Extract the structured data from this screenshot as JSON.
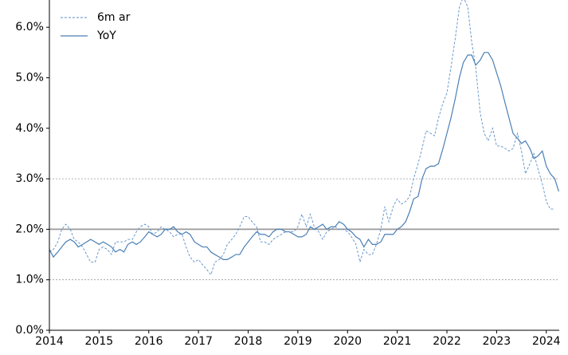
{
  "chart_data": {
    "type": "line",
    "x": [
      2014,
      2014.08,
      2014.17,
      2014.25,
      2014.33,
      2014.42,
      2014.5,
      2014.58,
      2014.67,
      2014.75,
      2014.83,
      2014.92,
      2015,
      2015.08,
      2015.17,
      2015.25,
      2015.33,
      2015.42,
      2015.5,
      2015.58,
      2015.67,
      2015.75,
      2015.83,
      2015.92,
      2016,
      2016.08,
      2016.17,
      2016.25,
      2016.33,
      2016.42,
      2016.5,
      2016.58,
      2016.67,
      2016.75,
      2016.83,
      2016.92,
      2017,
      2017.08,
      2017.17,
      2017.25,
      2017.33,
      2017.42,
      2017.5,
      2017.58,
      2017.67,
      2017.75,
      2017.83,
      2017.92,
      2018,
      2018.08,
      2018.17,
      2018.25,
      2018.33,
      2018.42,
      2018.5,
      2018.58,
      2018.67,
      2018.75,
      2018.83,
      2018.92,
      2019,
      2019.08,
      2019.17,
      2019.25,
      2019.33,
      2019.42,
      2019.5,
      2019.58,
      2019.67,
      2019.75,
      2019.83,
      2019.92,
      2020,
      2020.08,
      2020.17,
      2020.25,
      2020.33,
      2020.42,
      2020.5,
      2020.58,
      2020.67,
      2020.75,
      2020.83,
      2020.92,
      2021,
      2021.08,
      2021.17,
      2021.25,
      2021.33,
      2021.42,
      2021.5,
      2021.58,
      2021.67,
      2021.75,
      2021.83,
      2021.92,
      2022,
      2022.08,
      2022.17,
      2022.25,
      2022.33,
      2022.42,
      2022.5,
      2022.58,
      2022.67,
      2022.75,
      2022.83,
      2022.92,
      2023,
      2023.08,
      2023.17,
      2023.25,
      2023.33,
      2023.42,
      2023.5,
      2023.58,
      2023.67,
      2023.75,
      2023.83,
      2023.92,
      2024,
      2024.08,
      2024.17,
      2024.25
    ],
    "series": [
      {
        "name": "6m ar",
        "color": "#5b8fc7",
        "dash": true,
        "values": [
          1.55,
          1.6,
          1.75,
          2.0,
          2.1,
          2.0,
          1.8,
          1.75,
          1.65,
          1.5,
          1.35,
          1.35,
          1.6,
          1.65,
          1.6,
          1.5,
          1.75,
          1.75,
          1.75,
          1.8,
          1.8,
          1.95,
          2.05,
          2.1,
          2.05,
          1.9,
          1.95,
          2.05,
          2.0,
          1.95,
          1.85,
          1.9,
          1.9,
          1.65,
          1.45,
          1.35,
          1.4,
          1.3,
          1.2,
          1.1,
          1.35,
          1.4,
          1.5,
          1.7,
          1.8,
          1.9,
          2.05,
          2.25,
          2.25,
          2.15,
          2.05,
          1.75,
          1.75,
          1.7,
          1.8,
          1.85,
          1.9,
          1.95,
          1.95,
          1.95,
          2.05,
          2.3,
          2.05,
          2.3,
          2.05,
          1.95,
          1.8,
          1.95,
          2.0,
          2.05,
          2.0,
          2.0,
          1.95,
          1.85,
          1.7,
          1.35,
          1.6,
          1.5,
          1.5,
          1.7,
          2.0,
          2.45,
          2.15,
          2.45,
          2.6,
          2.5,
          2.55,
          2.65,
          3.0,
          3.3,
          3.6,
          3.95,
          3.9,
          3.85,
          4.2,
          4.5,
          4.7,
          5.2,
          5.8,
          6.4,
          6.6,
          6.4,
          5.7,
          5.2,
          4.3,
          3.9,
          3.75,
          4.0,
          3.65,
          3.65,
          3.6,
          3.55,
          3.6,
          3.9,
          3.55,
          3.1,
          3.3,
          3.5,
          3.2,
          2.9,
          2.55,
          2.4,
          2.4,
          null
        ]
      },
      {
        "name": "YoY",
        "color": "#4a7fb5",
        "dash": false,
        "values": [
          1.6,
          1.45,
          1.55,
          1.65,
          1.75,
          1.8,
          1.75,
          1.65,
          1.7,
          1.75,
          1.8,
          1.75,
          1.7,
          1.75,
          1.7,
          1.65,
          1.55,
          1.6,
          1.55,
          1.7,
          1.75,
          1.7,
          1.75,
          1.85,
          1.95,
          1.9,
          1.85,
          1.9,
          2.0,
          2.0,
          2.05,
          1.95,
          1.9,
          1.95,
          1.9,
          1.75,
          1.7,
          1.65,
          1.65,
          1.55,
          1.5,
          1.45,
          1.4,
          1.4,
          1.45,
          1.5,
          1.5,
          1.65,
          1.75,
          1.85,
          1.95,
          1.9,
          1.9,
          1.85,
          1.95,
          2.0,
          2.0,
          1.95,
          1.95,
          1.9,
          1.85,
          1.85,
          1.9,
          2.05,
          2.0,
          2.05,
          2.1,
          2.0,
          2.05,
          2.05,
          2.15,
          2.1,
          2.0,
          1.95,
          1.85,
          1.8,
          1.65,
          1.8,
          1.7,
          1.7,
          1.75,
          1.9,
          1.9,
          1.9,
          2.0,
          2.05,
          2.15,
          2.35,
          2.6,
          2.65,
          3.0,
          3.2,
          3.25,
          3.25,
          3.3,
          3.6,
          3.9,
          4.2,
          4.6,
          5.0,
          5.3,
          5.45,
          5.45,
          5.25,
          5.35,
          5.5,
          5.5,
          5.35,
          5.1,
          4.85,
          4.5,
          4.2,
          3.9,
          3.8,
          3.7,
          3.75,
          3.6,
          3.4,
          3.45,
          3.55,
          3.25,
          3.1,
          3.0,
          2.75
        ]
      }
    ],
    "xlim": [
      2014,
      2024.26
    ],
    "xticks": [
      2014,
      2015,
      2016,
      2017,
      2018,
      2019,
      2020,
      2021,
      2022,
      2023,
      2024
    ],
    "ylim": [
      0,
      6.54
    ],
    "yticks": [
      {
        "value": 0,
        "label": "0.0%"
      },
      {
        "value": 1,
        "label": "1.0%"
      },
      {
        "value": 2,
        "label": "2.0%"
      },
      {
        "value": 3,
        "label": "3.0%"
      },
      {
        "value": 4,
        "label": "4.0%"
      },
      {
        "value": 5,
        "label": "5.0%"
      },
      {
        "value": 6,
        "label": "6.0%"
      }
    ],
    "reference_lines": [
      {
        "value": 1,
        "style": "dotted"
      },
      {
        "value": 2,
        "style": "solid"
      },
      {
        "value": 3,
        "style": "dotted"
      }
    ],
    "legend": "upper left"
  }
}
